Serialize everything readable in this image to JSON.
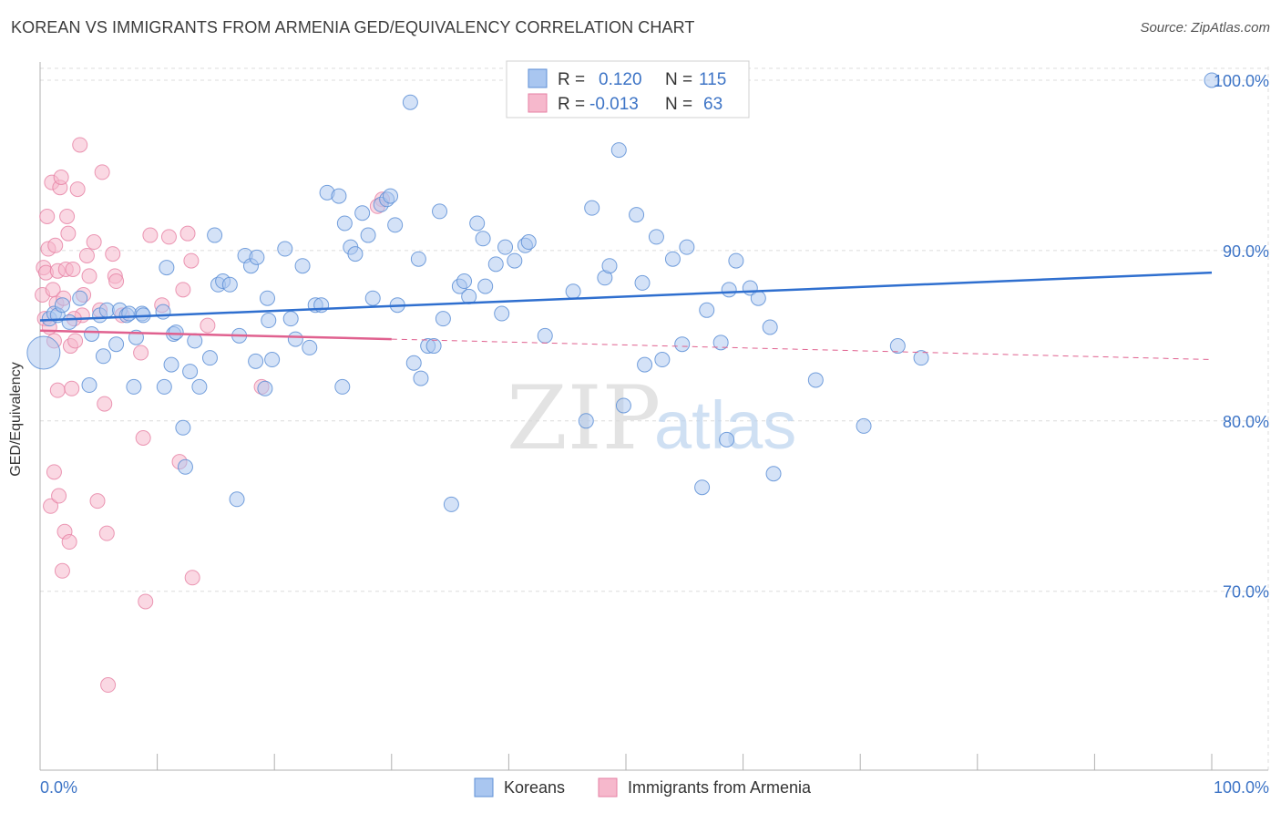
{
  "title": "KOREAN VS IMMIGRANTS FROM ARMENIA GED/EQUIVALENCY CORRELATION CHART",
  "source": "Source: ZipAtlas.com",
  "watermark": {
    "zip": "ZIP",
    "atlas": "atlas"
  },
  "colors": {
    "koreans_fill": "#a9c6f0",
    "koreans_stroke": "#5d8fd6",
    "koreans_line": "#2f6fcf",
    "armenia_fill": "#f6b8cc",
    "armenia_stroke": "#e67fa3",
    "armenia_line": "#e0618f",
    "grid": "#dcdcdc",
    "tick_text": "#3d74c6"
  },
  "legend": {
    "rows": [
      {
        "r_label": "R =",
        "r_value": "0.120",
        "n_label": "N =",
        "n_value": "115"
      },
      {
        "r_label": "R =",
        "r_value": "-0.013",
        "n_label": "N =",
        "n_value": "63"
      }
    ]
  },
  "chart_data": {
    "type": "scatter",
    "xlabel": "",
    "ylabel": "GED/Equivalency",
    "xlim": [
      0,
      100
    ],
    "ylim": [
      59.5,
      100.8
    ],
    "x_tick_labels": [
      "0.0%",
      "100.0%"
    ],
    "y_ticks": [
      70,
      80,
      90,
      100
    ],
    "y_tick_labels": [
      "70.0%",
      "80.0%",
      "90.0%",
      "100.0%"
    ],
    "grid": true,
    "legend_position": "bottom-center",
    "series": [
      {
        "name": "Koreans",
        "trend": {
          "x": [
            0,
            100
          ],
          "y": [
            85.9,
            88.7
          ]
        },
        "points": [
          [
            0.3,
            84
          ],
          [
            0.8,
            86
          ],
          [
            1.2,
            86.3
          ],
          [
            1.5,
            86.2
          ],
          [
            1.9,
            86.8
          ],
          [
            2.5,
            85.8
          ],
          [
            3.4,
            87.2
          ],
          [
            4.2,
            82.1
          ],
          [
            4.4,
            85.1
          ],
          [
            5.1,
            86.2
          ],
          [
            5.4,
            83.8
          ],
          [
            5.7,
            86.5
          ],
          [
            6.5,
            84.5
          ],
          [
            6.8,
            86.5
          ],
          [
            7.4,
            86.2
          ],
          [
            7.6,
            86.3
          ],
          [
            8.0,
            82.0
          ],
          [
            8.2,
            84.9
          ],
          [
            8.7,
            86.3
          ],
          [
            8.8,
            86.2
          ],
          [
            10.5,
            86.4
          ],
          [
            10.6,
            82
          ],
          [
            10.8,
            89
          ],
          [
            11.2,
            83.3
          ],
          [
            11.4,
            85.1
          ],
          [
            11.6,
            85.2
          ],
          [
            12.2,
            79.6
          ],
          [
            12.4,
            77.3
          ],
          [
            12.8,
            82.9
          ],
          [
            13.2,
            84.7
          ],
          [
            13.6,
            82
          ],
          [
            14.5,
            83.7
          ],
          [
            14.9,
            90.9
          ],
          [
            15.2,
            88
          ],
          [
            15.6,
            88.2
          ],
          [
            16.2,
            88
          ],
          [
            16.8,
            75.4
          ],
          [
            17,
            85
          ],
          [
            17.5,
            89.7
          ],
          [
            18,
            89.1
          ],
          [
            18.4,
            83.5
          ],
          [
            18.5,
            89.6
          ],
          [
            19.2,
            81.9
          ],
          [
            19.4,
            87.2
          ],
          [
            19.5,
            85.9
          ],
          [
            19.8,
            83.6
          ],
          [
            20.9,
            90.1
          ],
          [
            21.4,
            86
          ],
          [
            21.8,
            84.8
          ],
          [
            22.4,
            89.1
          ],
          [
            23,
            84.3
          ],
          [
            23.5,
            86.8
          ],
          [
            24,
            86.8
          ],
          [
            24.5,
            93.4
          ],
          [
            25.5,
            93.2
          ],
          [
            25.8,
            82
          ],
          [
            26,
            91.6
          ],
          [
            26.5,
            90.2
          ],
          [
            26.9,
            89.8
          ],
          [
            27.5,
            92.2
          ],
          [
            28,
            90.9
          ],
          [
            28.4,
            87.2
          ],
          [
            29.1,
            92.7
          ],
          [
            29.6,
            93
          ],
          [
            29.9,
            93.2
          ],
          [
            30.3,
            91.5
          ],
          [
            30.5,
            86.8
          ],
          [
            31.6,
            98.7
          ],
          [
            31.9,
            83.4
          ],
          [
            32.3,
            89.5
          ],
          [
            32.5,
            82.5
          ],
          [
            33.1,
            84.4
          ],
          [
            33.6,
            84.4
          ],
          [
            34.1,
            92.3
          ],
          [
            34.4,
            86
          ],
          [
            35.1,
            75.1
          ],
          [
            35.8,
            87.9
          ],
          [
            36.2,
            88.2
          ],
          [
            36.6,
            87.3
          ],
          [
            37.3,
            91.6
          ],
          [
            37.8,
            90.7
          ],
          [
            38,
            87.9
          ],
          [
            38.9,
            89.2
          ],
          [
            39.4,
            86.3
          ],
          [
            39.7,
            90.2
          ],
          [
            40.5,
            89.4
          ],
          [
            41.4,
            90.3
          ],
          [
            41.7,
            90.5
          ],
          [
            43.1,
            85
          ],
          [
            45.5,
            87.6
          ],
          [
            46.6,
            80
          ],
          [
            47.1,
            92.5
          ],
          [
            48.2,
            88.4
          ],
          [
            48.6,
            89.1
          ],
          [
            49.4,
            95.9
          ],
          [
            49.8,
            80.9
          ],
          [
            50.9,
            92.1
          ],
          [
            51.4,
            88.1
          ],
          [
            51.6,
            83.3
          ],
          [
            52.6,
            90.8
          ],
          [
            53.1,
            83.6
          ],
          [
            54,
            89.5
          ],
          [
            54.8,
            84.5
          ],
          [
            55.2,
            90.2
          ],
          [
            56.5,
            76.1
          ],
          [
            56.9,
            86.5
          ],
          [
            58.1,
            84.6
          ],
          [
            58.6,
            78.9
          ],
          [
            58.8,
            87.7
          ],
          [
            59.4,
            89.4
          ],
          [
            60.6,
            87.8
          ],
          [
            61.3,
            87.2
          ],
          [
            62.3,
            85.5
          ],
          [
            62.6,
            76.9
          ],
          [
            66.2,
            82.4
          ],
          [
            70.3,
            79.7
          ],
          [
            73.2,
            84.4
          ],
          [
            75.2,
            83.7
          ],
          [
            100,
            100
          ]
        ]
      },
      {
        "name": "Immigrants from Armenia",
        "trend": {
          "x": [
            0,
            30
          ],
          "y": [
            85.3,
            84.8
          ]
        },
        "trend_dashed": {
          "x": [
            30,
            100
          ],
          "y": [
            84.8,
            83.6
          ]
        },
        "points": [
          [
            0.2,
            87.4
          ],
          [
            0.3,
            89.0
          ],
          [
            0.4,
            86.0
          ],
          [
            0.5,
            88.7
          ],
          [
            0.6,
            92.0
          ],
          [
            0.7,
            90.1
          ],
          [
            0.8,
            85.5
          ],
          [
            0.9,
            75.0
          ],
          [
            1.0,
            94.0
          ],
          [
            1.1,
            87.7
          ],
          [
            1.2,
            84.7
          ],
          [
            1.2,
            77.0
          ],
          [
            1.3,
            90.3
          ],
          [
            1.4,
            86.9
          ],
          [
            1.5,
            81.8
          ],
          [
            1.5,
            88.8
          ],
          [
            1.6,
            75.6
          ],
          [
            1.7,
            93.7
          ],
          [
            1.8,
            94.3
          ],
          [
            1.9,
            71.2
          ],
          [
            2.0,
            87.2
          ],
          [
            2.1,
            73.5
          ],
          [
            2.2,
            88.9
          ],
          [
            2.3,
            92.0
          ],
          [
            2.4,
            91.0
          ],
          [
            2.5,
            72.9
          ],
          [
            2.6,
            84.4
          ],
          [
            2.7,
            81.9
          ],
          [
            2.8,
            88.9
          ],
          [
            3.0,
            84.7
          ],
          [
            3.2,
            93.6
          ],
          [
            3.4,
            96.2
          ],
          [
            3.6,
            86.2
          ],
          [
            3.7,
            87.4
          ],
          [
            4.0,
            89.7
          ],
          [
            4.2,
            88.5
          ],
          [
            4.6,
            90.5
          ],
          [
            4.9,
            75.3
          ],
          [
            5.1,
            86.5
          ],
          [
            5.3,
            94.6
          ],
          [
            5.5,
            81.0
          ],
          [
            5.7,
            73.4
          ],
          [
            5.8,
            64.5
          ],
          [
            6.2,
            89.8
          ],
          [
            6.4,
            88.5
          ],
          [
            6.5,
            88.2
          ],
          [
            7.0,
            86.2
          ],
          [
            8.6,
            84.0
          ],
          [
            8.8,
            79.0
          ],
          [
            9.0,
            69.4
          ],
          [
            9.4,
            90.9
          ],
          [
            10.4,
            86.8
          ],
          [
            11.0,
            90.8
          ],
          [
            11.9,
            77.6
          ],
          [
            12.2,
            87.7
          ],
          [
            12.6,
            91.0
          ],
          [
            12.9,
            89.4
          ],
          [
            13.0,
            70.8
          ],
          [
            14.3,
            85.6
          ],
          [
            18.9,
            82.0
          ],
          [
            29.2,
            93.0
          ],
          [
            28.8,
            92.6
          ],
          [
            2.9,
            86.0
          ]
        ]
      }
    ]
  },
  "bottom_legend": [
    "Koreans",
    "Immigrants from Armenia"
  ]
}
